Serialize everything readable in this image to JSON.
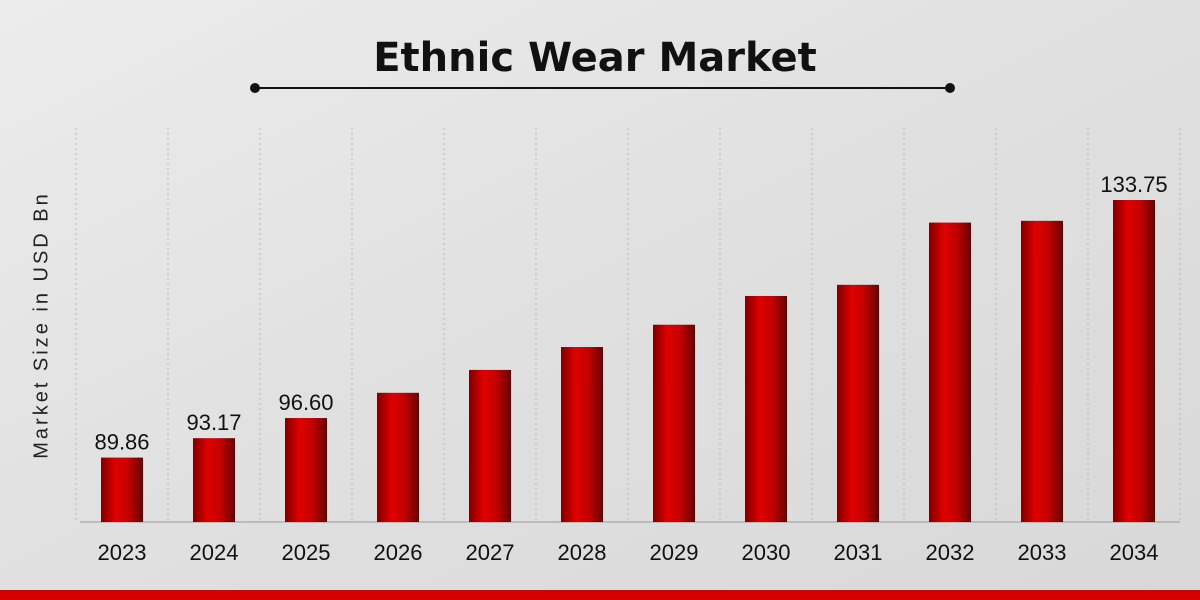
{
  "chart_data": {
    "type": "bar",
    "title": "Ethnic Wear Market",
    "y_label": "Market Size in USD Bn",
    "categories": [
      "2023",
      "2024",
      "2025",
      "2026",
      "2027",
      "2028",
      "2029",
      "2030",
      "2031",
      "2032",
      "2033",
      "2034"
    ],
    "values": [
      89.86,
      93.17,
      96.6,
      100.9,
      104.8,
      108.7,
      112.5,
      117.4,
      119.3,
      129.9,
      130.2,
      133.75
    ],
    "value_labels": [
      "89.86",
      "93.17",
      "96.60",
      null,
      null,
      null,
      null,
      null,
      null,
      null,
      null,
      "133.75"
    ],
    "color": "#c00000"
  }
}
